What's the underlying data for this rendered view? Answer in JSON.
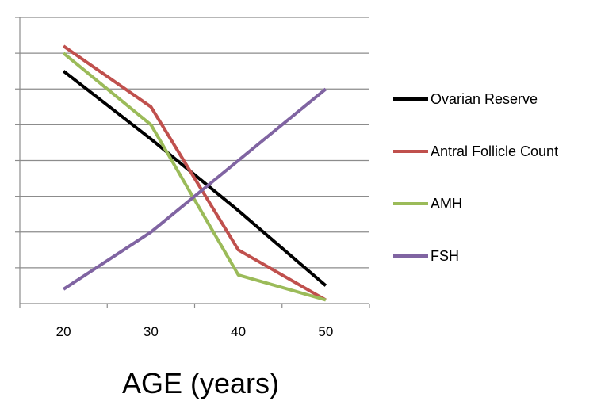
{
  "chart_data": {
    "type": "line",
    "x": [
      20,
      30,
      40,
      50
    ],
    "series": [
      {
        "name": "Ovarian Reserve",
        "color": "#000000",
        "values": [
          6.5,
          4.6,
          2.6,
          0.5
        ]
      },
      {
        "name": "Antral Follicle Count",
        "color": "#c0504d",
        "values": [
          7.2,
          5.5,
          1.5,
          0.1
        ]
      },
      {
        "name": "AMH",
        "color": "#9bbb59",
        "values": [
          7.0,
          5.0,
          0.8,
          0.1
        ]
      },
      {
        "name": "FSH",
        "color": "#8064a2",
        "values": [
          0.4,
          2.0,
          4.0,
          6.0
        ]
      }
    ],
    "xlabel": "AGE (years)",
    "ylabel": "",
    "ylim": [
      0,
      8
    ],
    "y_ticks": 8,
    "y_tick_labels": false,
    "grid": true,
    "legend": "right"
  }
}
